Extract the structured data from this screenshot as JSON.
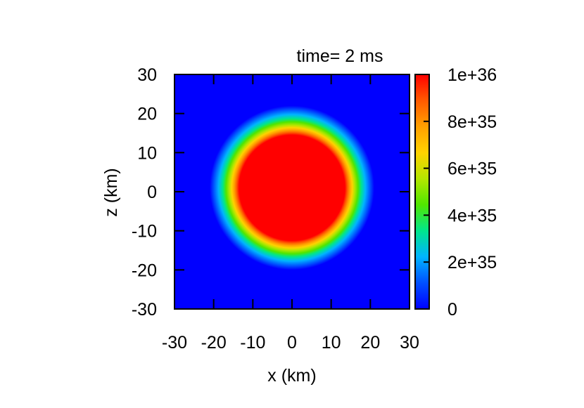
{
  "chart_data": {
    "type": "heatmap",
    "title": "time= 2 ms",
    "xlabel": "x (km)",
    "ylabel": "z (km)",
    "xlim": [
      -30,
      30
    ],
    "ylim": [
      -30,
      30
    ],
    "x_ticks": [
      -30,
      -20,
      -10,
      0,
      10,
      20,
      30
    ],
    "y_ticks": [
      -30,
      -20,
      -10,
      0,
      10,
      20,
      30
    ],
    "colorbar": {
      "range": [
        0,
        1e+36
      ],
      "ticks": [
        0,
        2e+35,
        4e+35,
        6e+35,
        8e+35,
        1e+36
      ],
      "tick_labels": [
        "0",
        "2e+35",
        "4e+35",
        "6e+35",
        "8e+35",
        "1e+36"
      ]
    },
    "field": {
      "center_x_km": 0,
      "center_z_km": 1,
      "saturated_radius_km": 13.5,
      "outer_radius_km": 21,
      "peak_value": 1e+36,
      "background_value": 0
    },
    "colors": {
      "palette": [
        "#0000ff",
        "#0050ff",
        "#00b4ff",
        "#00e68c",
        "#50e600",
        "#b4e600",
        "#ffd200",
        "#ffa000",
        "#ff5a00",
        "#ff0000"
      ]
    }
  }
}
